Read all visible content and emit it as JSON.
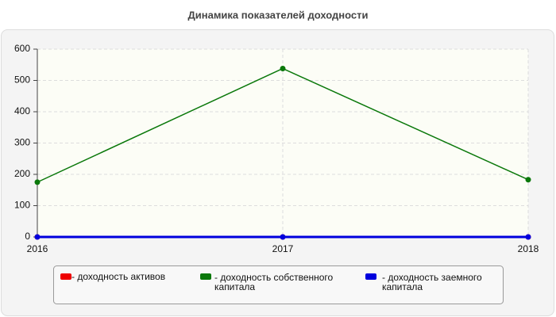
{
  "chart_data": {
    "type": "line",
    "title": "Динамика показателей доходности",
    "categories": [
      "2016",
      "2017",
      "2018"
    ],
    "series": [
      {
        "name": "- доходность активов",
        "color": "#ee0000",
        "values": [
          0,
          0,
          0
        ]
      },
      {
        "name": "- доходность собственного капитала",
        "color": "#0a780a",
        "values": [
          175,
          538,
          183
        ]
      },
      {
        "name": "- доходность заемного капитала",
        "color": "#0000dd",
        "values": [
          0,
          0,
          0
        ]
      }
    ],
    "ylim": [
      0,
      600
    ],
    "yticks": [
      0,
      100,
      200,
      300,
      400,
      500,
      600
    ],
    "grid": true
  }
}
